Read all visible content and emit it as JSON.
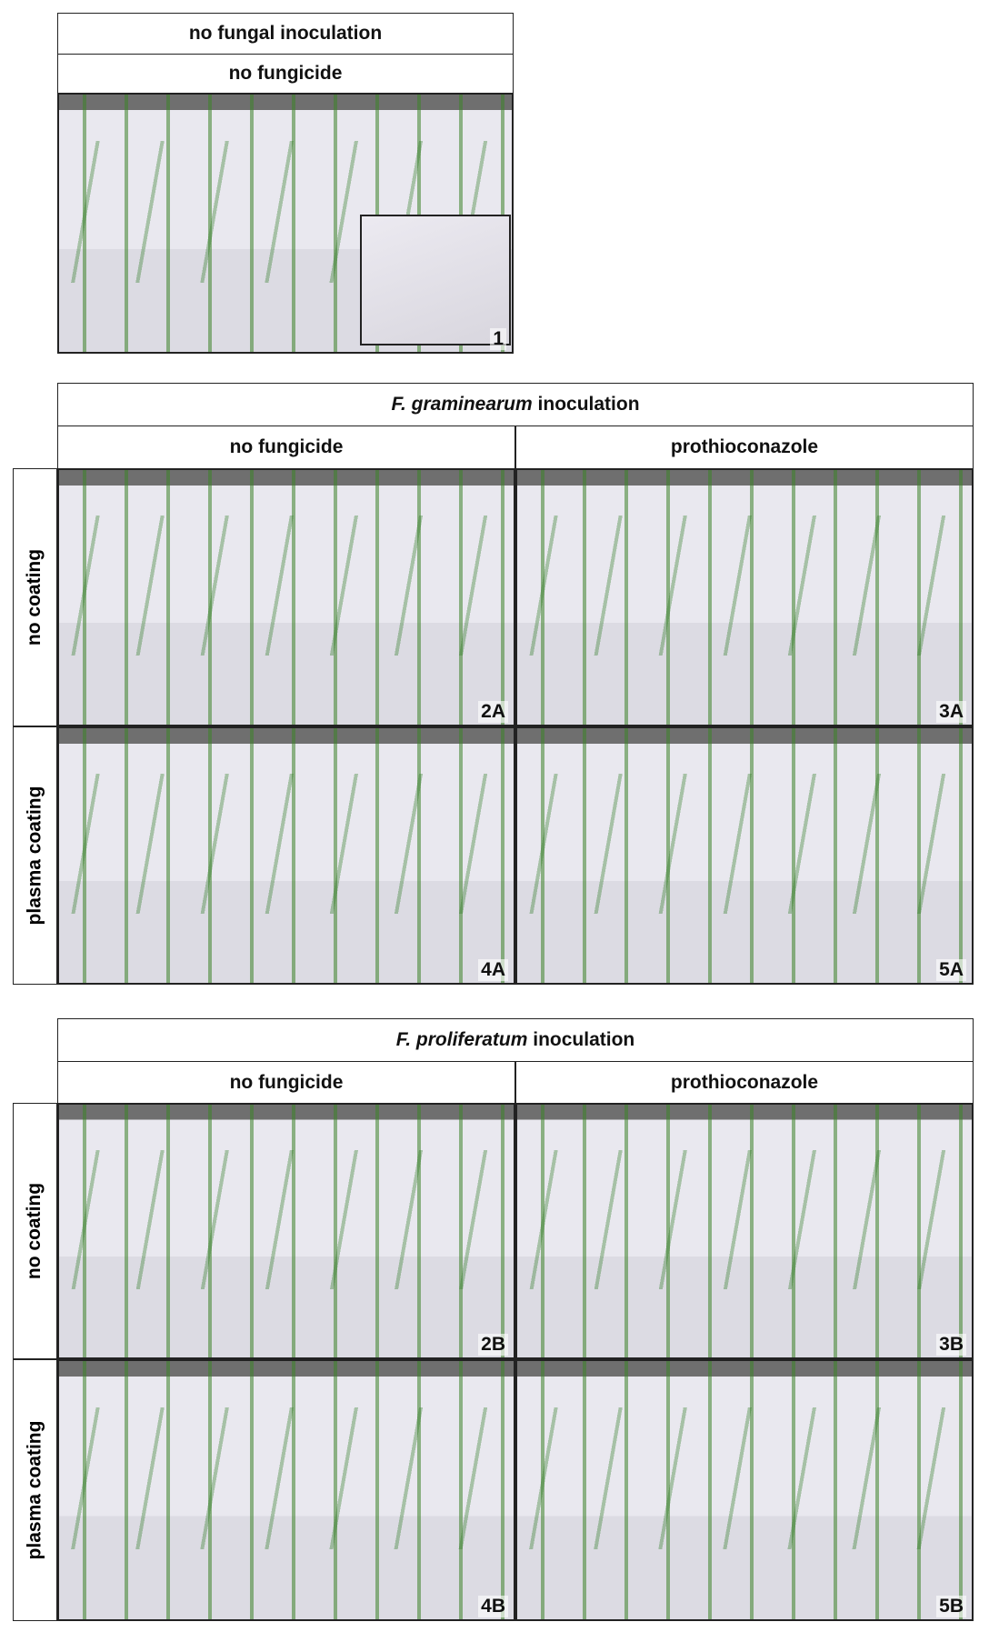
{
  "sections": [
    {
      "header": {
        "text": "no fungal inoculation"
      },
      "columns": [
        "no fungicide"
      ],
      "rows": [
        null
      ],
      "photos": [
        [
          "1"
        ]
      ]
    },
    {
      "header": {
        "species": "F. graminearum",
        "text": "inoculation"
      },
      "columns": [
        "no fungicide",
        "prothioconazole"
      ],
      "rows": [
        "no coating",
        "plasma coating"
      ],
      "photos": [
        [
          "2A",
          "3A"
        ],
        [
          "4A",
          "5A"
        ]
      ]
    },
    {
      "header": {
        "species": "F. proliferatum",
        "text": "inoculation"
      },
      "columns": [
        "no fungicide",
        "prothioconazole"
      ],
      "rows": [
        "no coating",
        "plasma coating"
      ],
      "photos": [
        [
          "2B",
          "3B"
        ],
        [
          "4B",
          "5B"
        ]
      ]
    }
  ]
}
